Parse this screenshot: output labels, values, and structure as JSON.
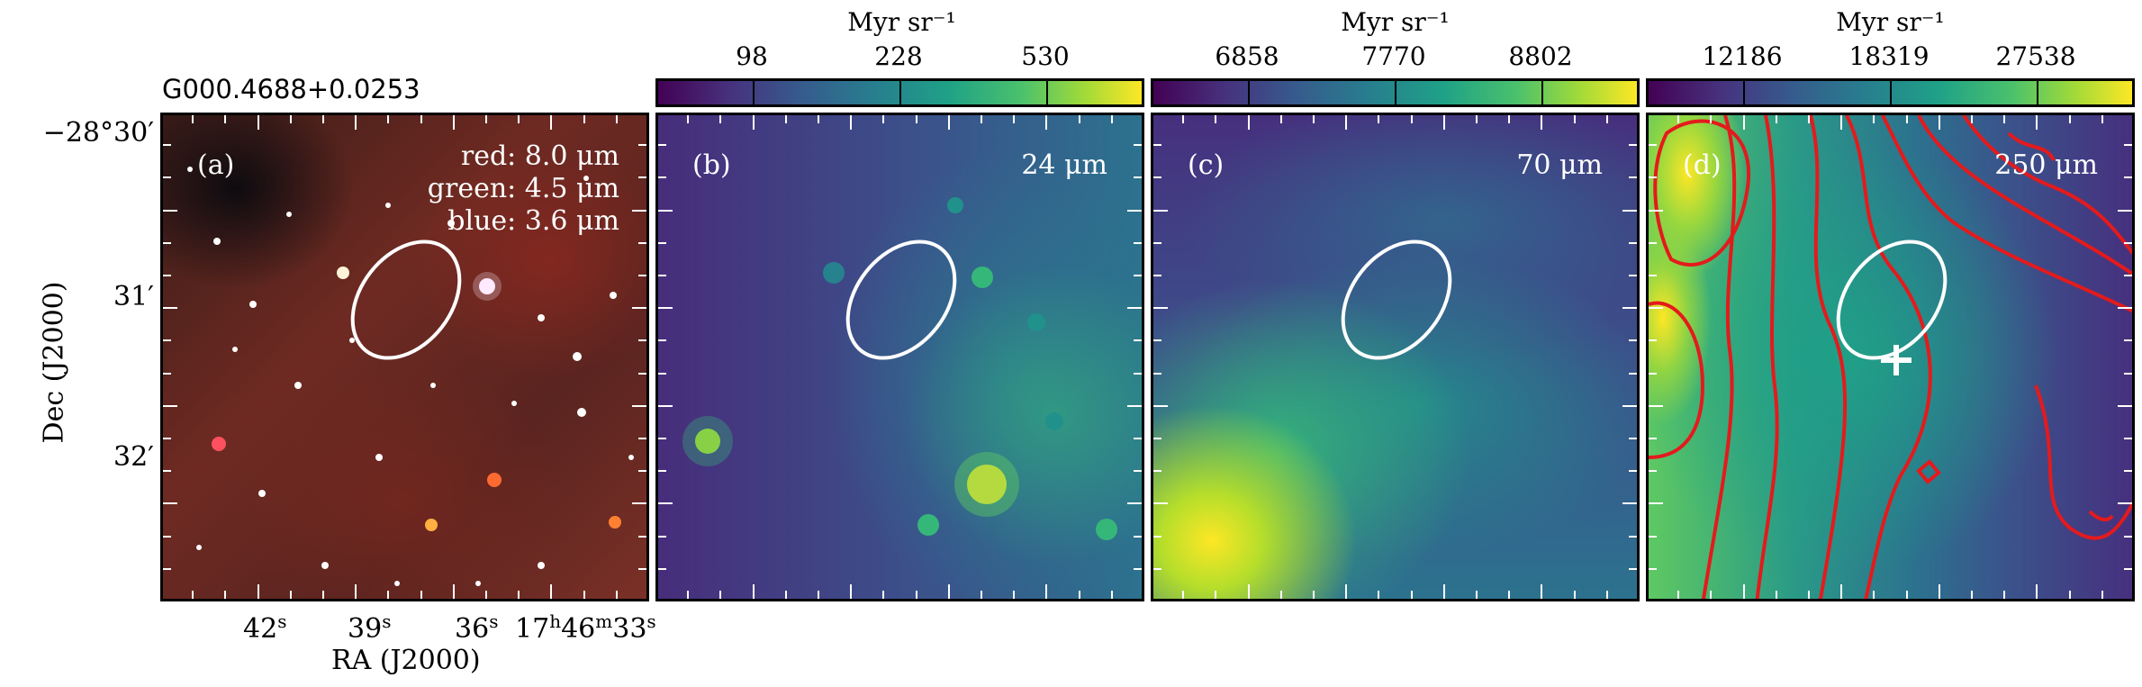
{
  "source_title": "G000.4688+0.0253",
  "axes": {
    "xlabel": "RA (J2000)",
    "ylabel": "Dec (J2000)",
    "dec_ticks": [
      "−28°30′",
      "31′",
      "32′"
    ],
    "ra_ticks": [
      "42",
      "39",
      "36",
      "17"
    ],
    "ra_units": {
      "s": "s",
      "h": "h",
      "m": "m"
    },
    "ra_last_tick_parts": {
      "h": "17",
      "m": "46",
      "s": "33"
    }
  },
  "colorbar_unit": "Myr sr⁻¹",
  "panels": [
    {
      "id": "a",
      "tag": "(a)",
      "band_lines": [
        "red: 8.0 μm",
        "green: 4.5 μm",
        "blue: 3.6 μm"
      ]
    },
    {
      "id": "b",
      "tag": "(b)",
      "band": "24 μm",
      "cbar_ticks": [
        "98",
        "228",
        "530"
      ]
    },
    {
      "id": "c",
      "tag": "(c)",
      "band": "70 μm",
      "cbar_ticks": [
        "6858",
        "7770",
        "8802"
      ]
    },
    {
      "id": "d",
      "tag": "(d)",
      "band": "250 μm",
      "cbar_ticks": [
        "12186",
        "18319",
        "27538"
      ]
    }
  ],
  "colors": {
    "ellipse": "#ffffff",
    "contour": "#e41a1c",
    "marker": "#ffffff",
    "colormap": "viridis"
  }
}
